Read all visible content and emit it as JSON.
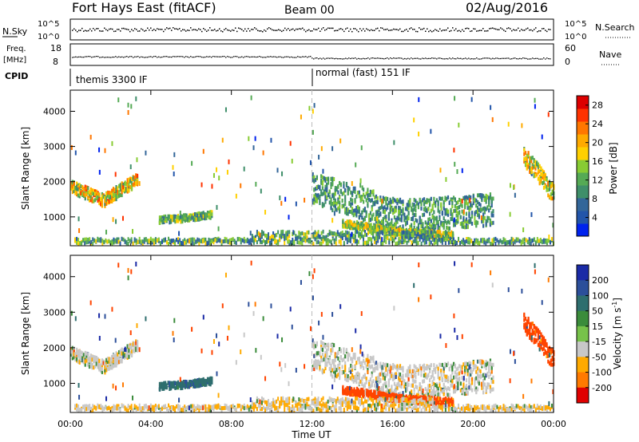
{
  "header": {
    "station": "Fort Hays East (fitACF)",
    "beam": "Beam 00",
    "date": "02/Aug/2016"
  },
  "noise_panel": {
    "left_label": "N.Sky",
    "right_label": "N.Search",
    "ticks": [
      "10^5",
      "10^0"
    ],
    "right_ticks": [
      "10^5",
      "10^0"
    ]
  },
  "freq_panel": {
    "left_label_1": "Freq.",
    "left_label_2": "[MHz]",
    "right_label": "Nave",
    "left_ticks": [
      "18",
      "8"
    ],
    "right_ticks": [
      "60",
      "0"
    ]
  },
  "cpid": {
    "label": "CPID",
    "segments": [
      {
        "text": "themis 3300 IF",
        "start_hour": 0
      },
      {
        "text": "normal (fast) 151 IF",
        "start_hour": 12
      }
    ]
  },
  "colors": {
    "power_scale": [
      "#0022ee",
      "#2255aa",
      "#336699",
      "#3f8f6a",
      "#55aa55",
      "#88cc33",
      "#ffd000",
      "#ffaa00",
      "#ff7700",
      "#ff3300",
      "#dd0000"
    ],
    "velocity_scale": [
      "#1a2aa6",
      "#2c4f9a",
      "#2e6e6e",
      "#3b8c3b",
      "#77c24a",
      "#c8c8c8",
      "#c8c8c8",
      "#ffaa00",
      "#ff7a00",
      "#ff4400",
      "#e00000"
    ]
  },
  "chart_data": [
    {
      "type": "heatmap",
      "panel": "power",
      "ylabel": "Slant Range [km]",
      "y_ticks": [
        "1000",
        "2000",
        "3000",
        "4000"
      ],
      "y_tick_values": [
        1000,
        2000,
        3000,
        4000
      ],
      "ylim": [
        180,
        4600
      ],
      "xlim_hours": [
        0,
        24
      ],
      "colorbar_label": "Power [dB]",
      "colorbar_ticks": [
        "4",
        "8",
        "12",
        "16",
        "20",
        "24",
        "28"
      ],
      "colorbar_range": [
        0,
        30
      ],
      "echo_regions": [
        {
          "t0": 0.0,
          "t1": 3.3,
          "r_center_start": 1850,
          "r_center_mid": 1450,
          "r_center_end": 2050,
          "width": 350,
          "peak_power": 24
        },
        {
          "t0": 4.4,
          "t1": 7.0,
          "r_center_start": 900,
          "r_center_mid": 950,
          "r_center_end": 1050,
          "width": 180,
          "peak_power": 16
        },
        {
          "t0": 12.0,
          "t1": 21.0,
          "r_center_start": 1800,
          "r_center_mid": 1000,
          "r_center_end": 1200,
          "width": 900,
          "peak_power": 14
        },
        {
          "t0": 13.5,
          "t1": 19.0,
          "r_center_start": 800,
          "r_center_mid": 550,
          "r_center_end": 450,
          "width": 200,
          "peak_power": 20
        },
        {
          "t0": 22.5,
          "t1": 24.0,
          "r_center_start": 2700,
          "r_center_mid": 2200,
          "r_center_end": 1600,
          "width": 500,
          "peak_power": 22
        }
      ]
    },
    {
      "type": "heatmap",
      "panel": "velocity",
      "ylabel": "Slant Range [km]",
      "y_ticks": [
        "1000",
        "2000",
        "3000",
        "4000"
      ],
      "y_tick_values": [
        1000,
        2000,
        3000,
        4000
      ],
      "ylim": [
        180,
        4600
      ],
      "xlim_hours": [
        0,
        24
      ],
      "xlabel": "Time UT",
      "x_ticks": [
        "00:00",
        "04:00",
        "08:00",
        "12:00",
        "16:00",
        "20:00",
        "00:00"
      ],
      "x_tick_hours": [
        0,
        4,
        8,
        12,
        16,
        20,
        24
      ],
      "colorbar_label_main": "Velocity ",
      "colorbar_label_unit": "[m s",
      "colorbar_label_sup": "-1",
      "colorbar_label_close": "]",
      "colorbar_ticks": [
        "200",
        "100",
        "50",
        "15",
        "-15",
        "-50",
        "-100",
        "-200"
      ],
      "echo_regions": [
        {
          "t0": 0.0,
          "t1": 3.3,
          "velocity": 0
        },
        {
          "t0": 4.4,
          "t1": 7.0,
          "velocity": 60
        },
        {
          "t0": 12.0,
          "t1": 21.0,
          "velocity": 0
        },
        {
          "t0": 22.5,
          "t1": 24.0,
          "velocity": -120
        }
      ]
    }
  ]
}
